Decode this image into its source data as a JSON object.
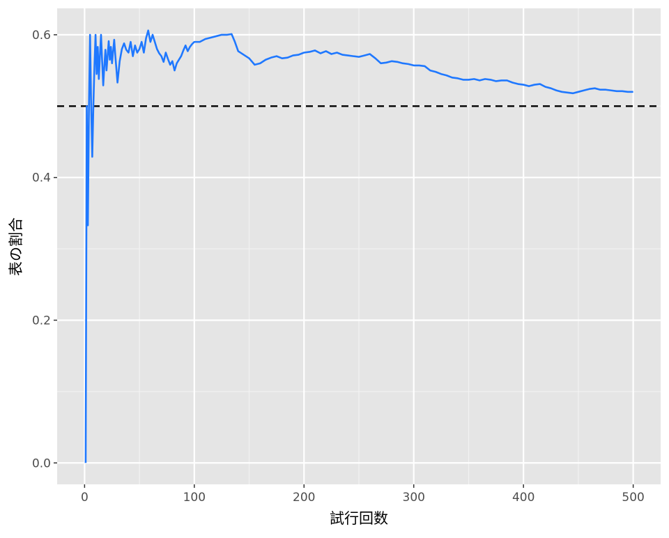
{
  "chart_data": {
    "type": "line",
    "title": "",
    "xlabel": "試行回数",
    "ylabel": "表の割合",
    "xlim": [
      -25,
      525
    ],
    "ylim": [
      -0.03,
      0.637
    ],
    "x_ticks": [
      0,
      100,
      200,
      300,
      400,
      500
    ],
    "x_tick_labels": [
      "0",
      "100",
      "200",
      "300",
      "400",
      "500"
    ],
    "y_ticks": [
      0.0,
      0.2,
      0.4,
      0.6
    ],
    "y_tick_labels": [
      "0.0",
      "0.2",
      "0.4",
      "0.6"
    ],
    "x_minor_ticks": [
      50,
      150,
      250,
      350,
      450
    ],
    "y_minor_ticks": [
      0.1,
      0.3,
      0.5
    ],
    "grid": true,
    "reference_line": {
      "y": 0.5,
      "style": "dashed",
      "color": "#000000"
    },
    "series": [
      {
        "name": "表の割合",
        "color": "#1f78ff",
        "points": [
          [
            1,
            0.0
          ],
          [
            2,
            0.5
          ],
          [
            3,
            0.333
          ],
          [
            4,
            0.5
          ],
          [
            5,
            0.6
          ],
          [
            6,
            0.5
          ],
          [
            7,
            0.429
          ],
          [
            8,
            0.5
          ],
          [
            9,
            0.556
          ],
          [
            10,
            0.6
          ],
          [
            11,
            0.545
          ],
          [
            12,
            0.583
          ],
          [
            13,
            0.538
          ],
          [
            14,
            0.571
          ],
          [
            15,
            0.6
          ],
          [
            16,
            0.563
          ],
          [
            17,
            0.529
          ],
          [
            18,
            0.556
          ],
          [
            19,
            0.579
          ],
          [
            20,
            0.55
          ],
          [
            21,
            0.571
          ],
          [
            22,
            0.591
          ],
          [
            23,
            0.565
          ],
          [
            24,
            0.583
          ],
          [
            25,
            0.56
          ],
          [
            26,
            0.577
          ],
          [
            27,
            0.593
          ],
          [
            28,
            0.571
          ],
          [
            29,
            0.552
          ],
          [
            30,
            0.533
          ],
          [
            32,
            0.563
          ],
          [
            34,
            0.58
          ],
          [
            36,
            0.588
          ],
          [
            38,
            0.579
          ],
          [
            40,
            0.575
          ],
          [
            42,
            0.59
          ],
          [
            44,
            0.57
          ],
          [
            46,
            0.585
          ],
          [
            48,
            0.575
          ],
          [
            50,
            0.58
          ],
          [
            52,
            0.59
          ],
          [
            54,
            0.575
          ],
          [
            56,
            0.595
          ],
          [
            58,
            0.606
          ],
          [
            60,
            0.59
          ],
          [
            62,
            0.6
          ],
          [
            64,
            0.59
          ],
          [
            66,
            0.58
          ],
          [
            68,
            0.574
          ],
          [
            70,
            0.57
          ],
          [
            72,
            0.562
          ],
          [
            74,
            0.575
          ],
          [
            76,
            0.566
          ],
          [
            78,
            0.558
          ],
          [
            80,
            0.563
          ],
          [
            82,
            0.55
          ],
          [
            84,
            0.56
          ],
          [
            86,
            0.565
          ],
          [
            88,
            0.57
          ],
          [
            90,
            0.578
          ],
          [
            92,
            0.585
          ],
          [
            94,
            0.577
          ],
          [
            96,
            0.583
          ],
          [
            98,
            0.587
          ],
          [
            100,
            0.59
          ],
          [
            105,
            0.59
          ],
          [
            110,
            0.594
          ],
          [
            115,
            0.596
          ],
          [
            120,
            0.598
          ],
          [
            125,
            0.6
          ],
          [
            130,
            0.6
          ],
          [
            134,
            0.601
          ],
          [
            137,
            0.59
          ],
          [
            140,
            0.577
          ],
          [
            145,
            0.572
          ],
          [
            150,
            0.567
          ],
          [
            155,
            0.558
          ],
          [
            160,
            0.56
          ],
          [
            165,
            0.565
          ],
          [
            170,
            0.568
          ],
          [
            175,
            0.57
          ],
          [
            180,
            0.567
          ],
          [
            185,
            0.568
          ],
          [
            190,
            0.571
          ],
          [
            195,
            0.572
          ],
          [
            200,
            0.575
          ],
          [
            205,
            0.576
          ],
          [
            210,
            0.578
          ],
          [
            215,
            0.574
          ],
          [
            220,
            0.577
          ],
          [
            225,
            0.573
          ],
          [
            230,
            0.575
          ],
          [
            235,
            0.572
          ],
          [
            240,
            0.571
          ],
          [
            245,
            0.57
          ],
          [
            250,
            0.569
          ],
          [
            255,
            0.571
          ],
          [
            260,
            0.573
          ],
          [
            265,
            0.567
          ],
          [
            270,
            0.56
          ],
          [
            275,
            0.561
          ],
          [
            280,
            0.563
          ],
          [
            285,
            0.562
          ],
          [
            290,
            0.56
          ],
          [
            295,
            0.559
          ],
          [
            300,
            0.557
          ],
          [
            305,
            0.557
          ],
          [
            310,
            0.556
          ],
          [
            315,
            0.55
          ],
          [
            320,
            0.548
          ],
          [
            325,
            0.545
          ],
          [
            330,
            0.543
          ],
          [
            335,
            0.54
          ],
          [
            340,
            0.539
          ],
          [
            345,
            0.537
          ],
          [
            350,
            0.537
          ],
          [
            355,
            0.538
          ],
          [
            360,
            0.536
          ],
          [
            365,
            0.538
          ],
          [
            370,
            0.537
          ],
          [
            375,
            0.535
          ],
          [
            380,
            0.536
          ],
          [
            385,
            0.536
          ],
          [
            390,
            0.533
          ],
          [
            395,
            0.531
          ],
          [
            400,
            0.53
          ],
          [
            405,
            0.528
          ],
          [
            410,
            0.53
          ],
          [
            415,
            0.531
          ],
          [
            420,
            0.527
          ],
          [
            425,
            0.525
          ],
          [
            430,
            0.522
          ],
          [
            435,
            0.52
          ],
          [
            440,
            0.519
          ],
          [
            445,
            0.518
          ],
          [
            450,
            0.52
          ],
          [
            455,
            0.522
          ],
          [
            460,
            0.524
          ],
          [
            465,
            0.525
          ],
          [
            470,
            0.523
          ],
          [
            475,
            0.523
          ],
          [
            480,
            0.522
          ],
          [
            485,
            0.521
          ],
          [
            490,
            0.521
          ],
          [
            495,
            0.52
          ],
          [
            500,
            0.52
          ]
        ]
      }
    ]
  }
}
